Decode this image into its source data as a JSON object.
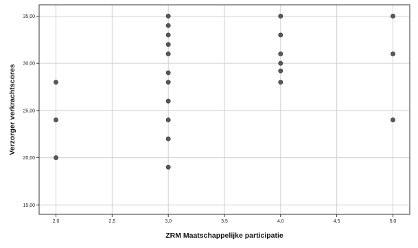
{
  "chart_data": {
    "type": "scatter",
    "xlabel": "ZRM Maatschappelijke participatie",
    "ylabel": "Verzorger verkrachtscores",
    "xlim": [
      1.85,
      5.15
    ],
    "ylim": [
      14,
      36.2
    ],
    "x_ticks": [
      2.0,
      2.5,
      3.0,
      3.5,
      4.0,
      4.5,
      5.0
    ],
    "x_tick_labels": [
      "2,0",
      "2,5",
      "3,0",
      "3,5",
      "4,0",
      "4,5",
      "5,0"
    ],
    "y_ticks": [
      15,
      20,
      25,
      30,
      35
    ],
    "y_tick_labels": [
      "15,00",
      "20,00",
      "25,00",
      "30,00",
      "35,00"
    ],
    "grid": true,
    "legend": "none",
    "marker_color": "#595959",
    "points": [
      {
        "x": 2.0,
        "y": 28
      },
      {
        "x": 2.0,
        "y": 24
      },
      {
        "x": 2.0,
        "y": 20
      },
      {
        "x": 3.0,
        "y": 35
      },
      {
        "x": 3.0,
        "y": 34
      },
      {
        "x": 3.0,
        "y": 33
      },
      {
        "x": 3.0,
        "y": 32
      },
      {
        "x": 3.0,
        "y": 31
      },
      {
        "x": 3.0,
        "y": 29
      },
      {
        "x": 3.0,
        "y": 28
      },
      {
        "x": 3.0,
        "y": 26
      },
      {
        "x": 3.0,
        "y": 24
      },
      {
        "x": 3.0,
        "y": 22
      },
      {
        "x": 3.0,
        "y": 19
      },
      {
        "x": 4.0,
        "y": 35
      },
      {
        "x": 4.0,
        "y": 33
      },
      {
        "x": 4.0,
        "y": 31
      },
      {
        "x": 4.0,
        "y": 30
      },
      {
        "x": 4.0,
        "y": 29.2
      },
      {
        "x": 4.0,
        "y": 28
      },
      {
        "x": 5.0,
        "y": 35
      },
      {
        "x": 5.0,
        "y": 31
      },
      {
        "x": 5.0,
        "y": 24
      }
    ]
  }
}
